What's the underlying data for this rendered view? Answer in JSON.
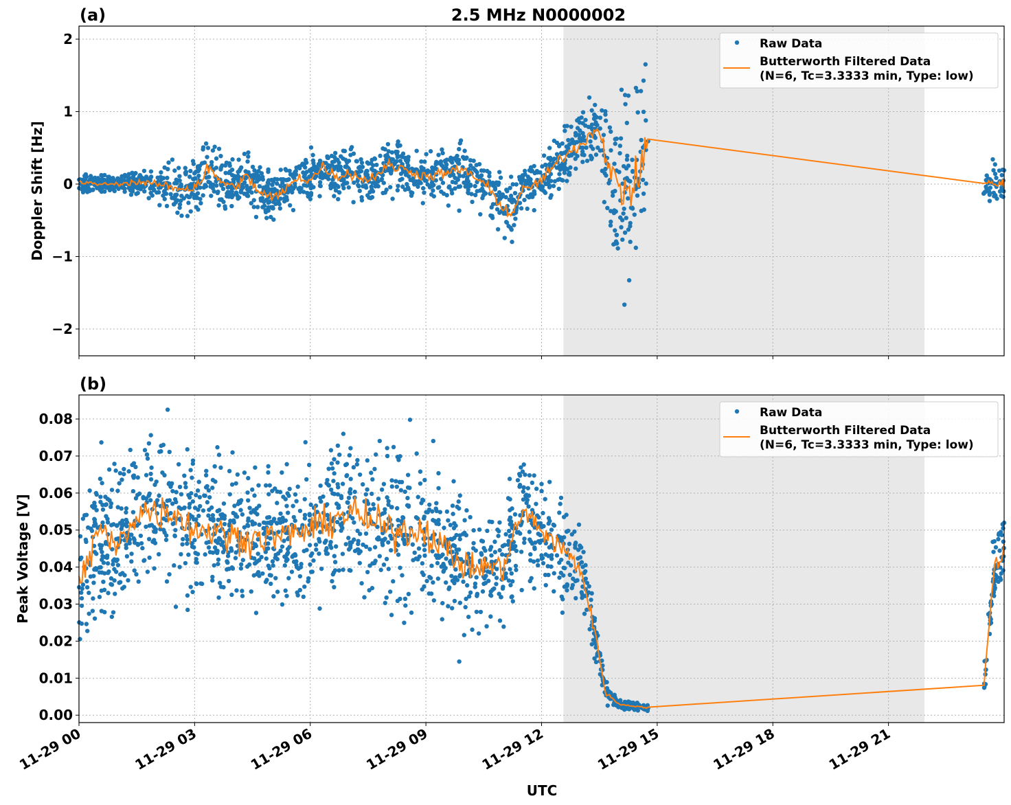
{
  "chart_data": [
    {
      "type": "scatter",
      "panel_label": "(a)",
      "title": "2.5 MHz N0000002",
      "xlabel": "",
      "ylabel": "Doppler Shift [Hz]",
      "xlim": [
        "11-29 00:00",
        "11-30 00:00"
      ],
      "ylim": [
        -2.37,
        2.18
      ],
      "yticks": [
        -2,
        -1,
        0,
        1,
        2
      ],
      "ytick_labels": [
        "−2",
        "−1",
        "0",
        "1",
        "2"
      ],
      "grid": true,
      "legend_placement": "top-right",
      "shaded_interval": [
        "11-29 12:34",
        "11-29 21:56"
      ],
      "shade_color": "#e8e8e8",
      "series": [
        {
          "name": "Raw Data",
          "kind": "points",
          "color": "#1f77b4"
        },
        {
          "name": "Butterworth Filtered Data\n(N=6, Tc=3.3333 min, Type: low)",
          "name_line1": "Butterworth Filtered Data",
          "name_line2": "(N=6, Tc=3.3333 min, Type: low)",
          "kind": "line",
          "color": "#ff7f0e"
        }
      ],
      "samples": [
        [
          "00:00",
          0.02,
          0.15
        ],
        [
          "00:30",
          0.0,
          0.1
        ],
        [
          "01:00",
          0.0,
          0.1
        ],
        [
          "01:30",
          0.03,
          0.2
        ],
        [
          "02:00",
          0.0,
          0.15
        ],
        [
          "02:30",
          -0.05,
          0.4
        ],
        [
          "03:00",
          -0.05,
          0.4
        ],
        [
          "03:20",
          0.2,
          0.5
        ],
        [
          "03:40",
          0.05,
          0.35
        ],
        [
          "04:00",
          -0.05,
          0.3
        ],
        [
          "04:20",
          0.1,
          0.35
        ],
        [
          "04:40",
          -0.1,
          0.35
        ],
        [
          "05:00",
          -0.2,
          0.35
        ],
        [
          "05:20",
          -0.1,
          0.3
        ],
        [
          "05:40",
          0.1,
          0.3
        ],
        [
          "06:00",
          0.05,
          0.3
        ],
        [
          "06:20",
          0.25,
          0.3
        ],
        [
          "06:40",
          0.1,
          0.3
        ],
        [
          "07:00",
          0.15,
          0.3
        ],
        [
          "07:30",
          0.05,
          0.3
        ],
        [
          "08:00",
          0.25,
          0.35
        ],
        [
          "08:30",
          0.2,
          0.3
        ],
        [
          "09:00",
          0.1,
          0.3
        ],
        [
          "09:30",
          0.15,
          0.35
        ],
        [
          "10:00",
          0.2,
          0.35
        ],
        [
          "10:30",
          0.0,
          0.35
        ],
        [
          "11:00",
          -0.3,
          0.4
        ],
        [
          "11:10",
          -0.45,
          0.45
        ],
        [
          "11:30",
          -0.1,
          0.3
        ],
        [
          "12:00",
          0.05,
          0.3
        ],
        [
          "12:30",
          0.35,
          0.35
        ],
        [
          "13:00",
          0.55,
          0.4
        ],
        [
          "13:30",
          0.8,
          0.4
        ],
        [
          "13:45",
          0.2,
          1.1
        ],
        [
          "14:00",
          -0.1,
          1.2
        ],
        [
          "14:30",
          0.0,
          1.3
        ],
        [
          "14:45",
          0.68,
          1.0
        ],
        [
          "23:28",
          0.02,
          0.3
        ],
        [
          "24:00",
          -0.02,
          0.3
        ]
      ],
      "gap": [
        "14:46",
        "23:28"
      ]
    },
    {
      "type": "scatter",
      "panel_label": "(b)",
      "title": "",
      "xlabel": "UTC",
      "ylabel": "Peak Voltage [V]",
      "xlim": [
        "11-29 00:00",
        "11-30 00:00"
      ],
      "ylim": [
        -0.002,
        0.0865
      ],
      "yticks": [
        0,
        0.01,
        0.02,
        0.03,
        0.04,
        0.05,
        0.06,
        0.07,
        0.08
      ],
      "ytick_labels": [
        "0.00",
        "0.01",
        "0.02",
        "0.03",
        "0.04",
        "0.05",
        "0.06",
        "0.07",
        "0.08"
      ],
      "xticks": [
        "00:00",
        "03:00",
        "06:00",
        "09:00",
        "12:00",
        "15:00",
        "18:00",
        "21:00"
      ],
      "xtick_labels": [
        "11-29 00",
        "11-29 03",
        "11-29 06",
        "11-29 09",
        "11-29 12",
        "11-29 15",
        "11-29 18",
        "11-29 21"
      ],
      "grid": true,
      "legend_placement": "top-right",
      "shaded_interval": [
        "11-29 12:34",
        "11-29 21:56"
      ],
      "shade_color": "#e8e8e8",
      "series": [
        {
          "name": "Raw Data",
          "kind": "points",
          "color": "#1f77b4"
        },
        {
          "name": "Butterworth Filtered Data\n(N=6, Tc=3.3333 min, Type: low)",
          "name_line1": "Butterworth Filtered Data",
          "name_line2": "(N=6, Tc=3.3333 min, Type: low)",
          "kind": "line",
          "color": "#ff7f0e"
        }
      ],
      "samples": [
        [
          "00:00",
          0.035,
          0.02
        ],
        [
          "00:30",
          0.05,
          0.02
        ],
        [
          "01:00",
          0.045,
          0.02
        ],
        [
          "01:30",
          0.055,
          0.02
        ],
        [
          "02:00",
          0.055,
          0.02
        ],
        [
          "02:30",
          0.055,
          0.02
        ],
        [
          "03:00",
          0.05,
          0.02
        ],
        [
          "03:30",
          0.05,
          0.018
        ],
        [
          "04:00",
          0.048,
          0.018
        ],
        [
          "05:00",
          0.048,
          0.018
        ],
        [
          "06:00",
          0.05,
          0.018
        ],
        [
          "07:00",
          0.055,
          0.02
        ],
        [
          "08:00",
          0.05,
          0.02
        ],
        [
          "09:00",
          0.05,
          0.02
        ],
        [
          "09:30",
          0.045,
          0.017
        ],
        [
          "10:00",
          0.04,
          0.017
        ],
        [
          "10:30",
          0.04,
          0.015
        ],
        [
          "11:00",
          0.04,
          0.015
        ],
        [
          "11:30",
          0.055,
          0.015
        ],
        [
          "12:00",
          0.05,
          0.015
        ],
        [
          "12:30",
          0.045,
          0.015
        ],
        [
          "13:00",
          0.04,
          0.012
        ],
        [
          "13:20",
          0.025,
          0.008
        ],
        [
          "13:40",
          0.006,
          0.003
        ],
        [
          "14:00",
          0.003,
          0.001
        ],
        [
          "14:45",
          0.002,
          0.001
        ],
        [
          "23:28",
          0.007,
          0.003
        ],
        [
          "23:45",
          0.04,
          0.012
        ],
        [
          "24:00",
          0.045,
          0.01
        ]
      ],
      "gap": [
        "14:46",
        "23:28"
      ]
    }
  ]
}
